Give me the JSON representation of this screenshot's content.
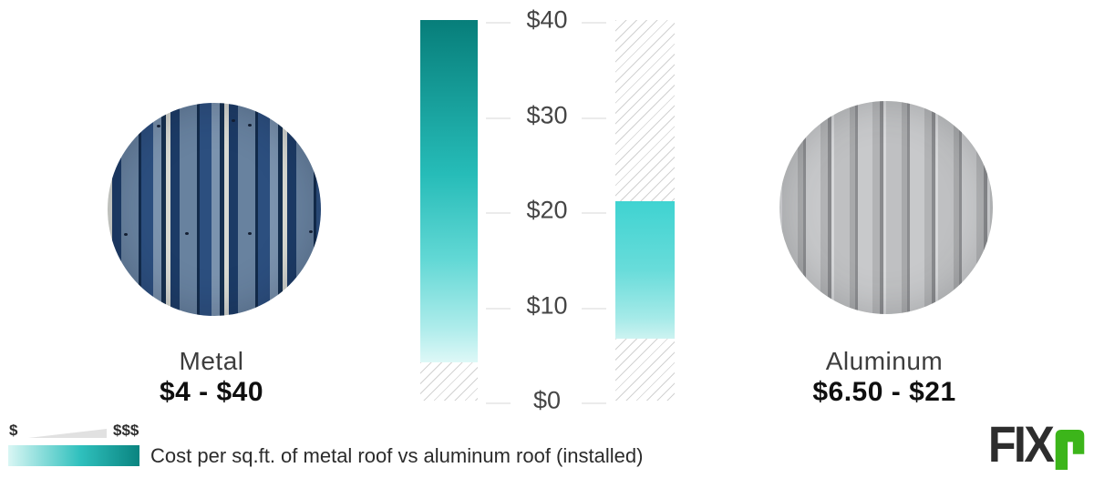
{
  "chart_data": {
    "type": "bar",
    "title": "Cost per sq.ft. of metal roof vs aluminum roof (installed)",
    "categories": [
      "Metal",
      "Aluminum"
    ],
    "bars": [
      {
        "category": "Metal",
        "low": 4,
        "high": 40,
        "low_label": "$4",
        "high_label": "$40"
      },
      {
        "category": "Aluminum",
        "low": 6.5,
        "high": 21,
        "low_label": "$6.50",
        "high_label": "$21"
      }
    ],
    "axis": {
      "min": 0,
      "max": 40,
      "ticks": [
        {
          "value": 0,
          "label": "$0"
        },
        {
          "value": 10,
          "label": "$10"
        },
        {
          "value": 20,
          "label": "$20"
        },
        {
          "value": 30,
          "label": "$30"
        },
        {
          "value": 40,
          "label": "$40"
        }
      ]
    },
    "grid": "short tick dashes on both sides of labels, no axis lines",
    "legend_position": "bottom-left",
    "bar_gradients": {
      "metal": [
        [
          "#077e7a",
          0
        ],
        [
          "#26bcb8",
          45
        ],
        [
          "#62d8d5",
          70
        ],
        [
          "#aeeceb",
          90
        ],
        [
          "#def8f7",
          100
        ]
      ],
      "aluminum": [
        [
          "#3fd3d1",
          0
        ],
        [
          "#68dcda",
          50
        ],
        [
          "#a5eae8",
          85
        ],
        [
          "#cdf3f1",
          100
        ]
      ]
    }
  },
  "items": [
    {
      "name": "Metal",
      "price_range": "$4 - $40",
      "image": "blue-metal-roof-panels-photo"
    },
    {
      "name": "Aluminum",
      "price_range": "$6.50 - $21",
      "image": "gray-aluminum-roof-panels-photo"
    }
  ],
  "footer": {
    "legend_low": "$",
    "legend_high": "$$$",
    "legend_gradient": [
      [
        "#d9f6f4",
        0
      ],
      [
        "#2fc0bd",
        55
      ],
      [
        "#0a8480",
        100
      ]
    ],
    "caption": "Cost per sq.ft. of metal roof vs aluminum roof (installed)",
    "logo_text": "FIX",
    "logo_r": "r"
  },
  "colors": {
    "accent_teal_dark": "#077e7a",
    "accent_teal_mid": "#2fc0bd",
    "accent_teal_light": "#d9f6f4",
    "hatch_gray": "#d2d2d2",
    "tick_text": "#454545",
    "name_text": "#3d3d3d",
    "price_text": "#0f0f0f",
    "logo_dark": "#2d2d2d",
    "logo_green": "#3cb51a",
    "background": "#ffffff"
  }
}
